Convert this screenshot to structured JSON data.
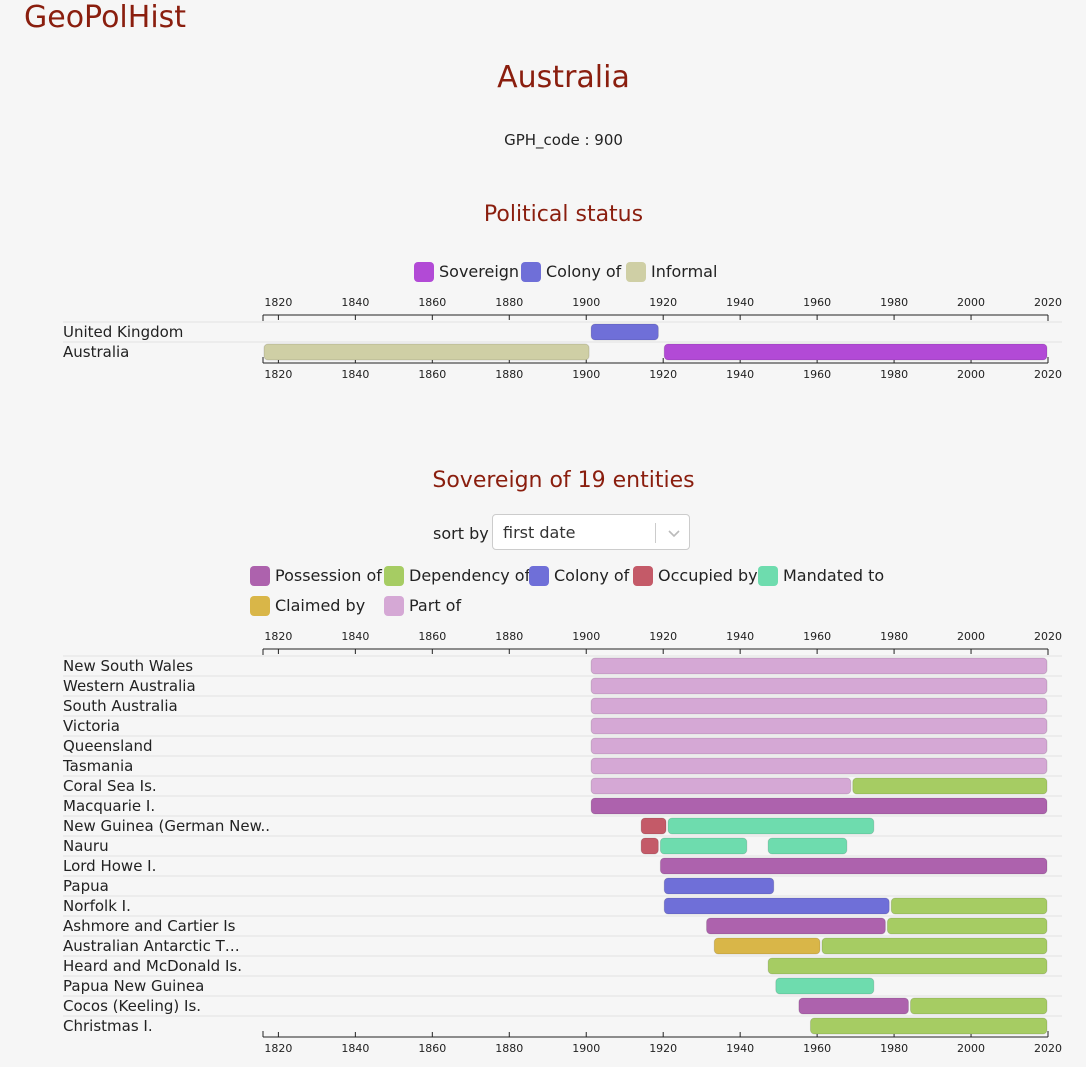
{
  "header": {
    "brand": "GeoPolHist"
  },
  "page": {
    "title": "Australia",
    "code_line": "GPH_code : 900"
  },
  "political_status": {
    "title": "Political status",
    "legend": [
      {
        "label": "Sovereign",
        "color": "#b24ad6"
      },
      {
        "label": "Colony of",
        "color": "#6f6fd8"
      },
      {
        "label": "Informal",
        "color": "#cfcfa5"
      }
    ]
  },
  "sovereign_section": {
    "title": "Sovereign of 19 entities",
    "sort_label": "sort by",
    "sort_value": "first date",
    "sort_chevron_icon": "chevron-down-icon",
    "legend": [
      {
        "label": "Possession of",
        "color": "#ad62ad"
      },
      {
        "label": "Dependency of",
        "color": "#a6cc63"
      },
      {
        "label": "Colony of",
        "color": "#6f6fd8"
      },
      {
        "label": "Occupied by",
        "color": "#c45a68"
      },
      {
        "label": "Mandated to",
        "color": "#6edcae"
      },
      {
        "label": "Claimed by",
        "color": "#d9b648"
      },
      {
        "label": "Part of",
        "color": "#d5a8d5"
      }
    ]
  },
  "chart_data": [
    {
      "type": "timeline",
      "title": "Political status",
      "x_range": [
        1816,
        2020
      ],
      "x_ticks": [
        1820,
        1840,
        1860,
        1880,
        1900,
        1920,
        1940,
        1960,
        1980,
        2000,
        2020
      ],
      "rows": [
        {
          "label": "United Kingdom",
          "bars": [
            {
              "start": 1901,
              "end": 1919,
              "status": "Colony of"
            }
          ]
        },
        {
          "label": "Australia",
          "bars": [
            {
              "start": 1816,
              "end": 1901,
              "status": "Informal"
            },
            {
              "start": 1920,
              "end": 2020,
              "status": "Sovereign"
            }
          ]
        }
      ]
    },
    {
      "type": "timeline",
      "title": "Sovereign of 19 entities",
      "x_range": [
        1816,
        2020
      ],
      "x_ticks": [
        1820,
        1840,
        1860,
        1880,
        1900,
        1920,
        1940,
        1960,
        1980,
        2000,
        2020
      ],
      "rows": [
        {
          "label": "New South Wales",
          "bars": [
            {
              "start": 1901,
              "end": 2020,
              "status": "Part of"
            }
          ]
        },
        {
          "label": "Western Australia",
          "bars": [
            {
              "start": 1901,
              "end": 2020,
              "status": "Part of"
            }
          ]
        },
        {
          "label": "South Australia",
          "bars": [
            {
              "start": 1901,
              "end": 2020,
              "status": "Part of"
            }
          ]
        },
        {
          "label": "Victoria",
          "bars": [
            {
              "start": 1901,
              "end": 2020,
              "status": "Part of"
            }
          ]
        },
        {
          "label": "Queensland",
          "bars": [
            {
              "start": 1901,
              "end": 2020,
              "status": "Part of"
            }
          ]
        },
        {
          "label": "Tasmania",
          "bars": [
            {
              "start": 1901,
              "end": 2020,
              "status": "Part of"
            }
          ]
        },
        {
          "label": "Coral Sea Is.",
          "bars": [
            {
              "start": 1901,
              "end": 1969,
              "status": "Part of"
            },
            {
              "start": 1969,
              "end": 2020,
              "status": "Dependency of"
            }
          ]
        },
        {
          "label": "Macquarie I.",
          "bars": [
            {
              "start": 1901,
              "end": 2020,
              "status": "Possession of"
            }
          ]
        },
        {
          "label": "New Guinea (German New..",
          "bars": [
            {
              "start": 1914,
              "end": 1921,
              "status": "Occupied by"
            },
            {
              "start": 1921,
              "end": 1975,
              "status": "Mandated to"
            }
          ]
        },
        {
          "label": "Nauru",
          "bars": [
            {
              "start": 1914,
              "end": 1919,
              "status": "Occupied by"
            },
            {
              "start": 1919,
              "end": 1942,
              "status": "Mandated to"
            },
            {
              "start": 1947,
              "end": 1968,
              "status": "Mandated to"
            }
          ]
        },
        {
          "label": "Lord Howe I.",
          "bars": [
            {
              "start": 1919,
              "end": 2020,
              "status": "Possession of"
            }
          ]
        },
        {
          "label": "Papua",
          "bars": [
            {
              "start": 1920,
              "end": 1949,
              "status": "Colony of"
            }
          ]
        },
        {
          "label": "Norfolk I.",
          "bars": [
            {
              "start": 1920,
              "end": 1979,
              "status": "Colony of"
            },
            {
              "start": 1979,
              "end": 2020,
              "status": "Dependency of"
            }
          ]
        },
        {
          "label": "Ashmore and Cartier Is",
          "bars": [
            {
              "start": 1931,
              "end": 1978,
              "status": "Possession of"
            },
            {
              "start": 1978,
              "end": 2020,
              "status": "Dependency of"
            }
          ]
        },
        {
          "label": "Australian Antarctic T…",
          "bars": [
            {
              "start": 1933,
              "end": 1961,
              "status": "Claimed by"
            },
            {
              "start": 1961,
              "end": 2020,
              "status": "Dependency of"
            }
          ]
        },
        {
          "label": "Heard and McDonald Is.",
          "bars": [
            {
              "start": 1947,
              "end": 2020,
              "status": "Dependency of"
            }
          ]
        },
        {
          "label": "Papua New Guinea",
          "bars": [
            {
              "start": 1949,
              "end": 1975,
              "status": "Mandated to"
            }
          ]
        },
        {
          "label": "Cocos (Keeling) Is.",
          "bars": [
            {
              "start": 1955,
              "end": 1984,
              "status": "Possession of"
            },
            {
              "start": 1984,
              "end": 2020,
              "status": "Dependency of"
            }
          ]
        },
        {
          "label": "Christmas I.",
          "bars": [
            {
              "start": 1958,
              "end": 2020,
              "status": "Dependency of"
            }
          ]
        }
      ]
    }
  ]
}
